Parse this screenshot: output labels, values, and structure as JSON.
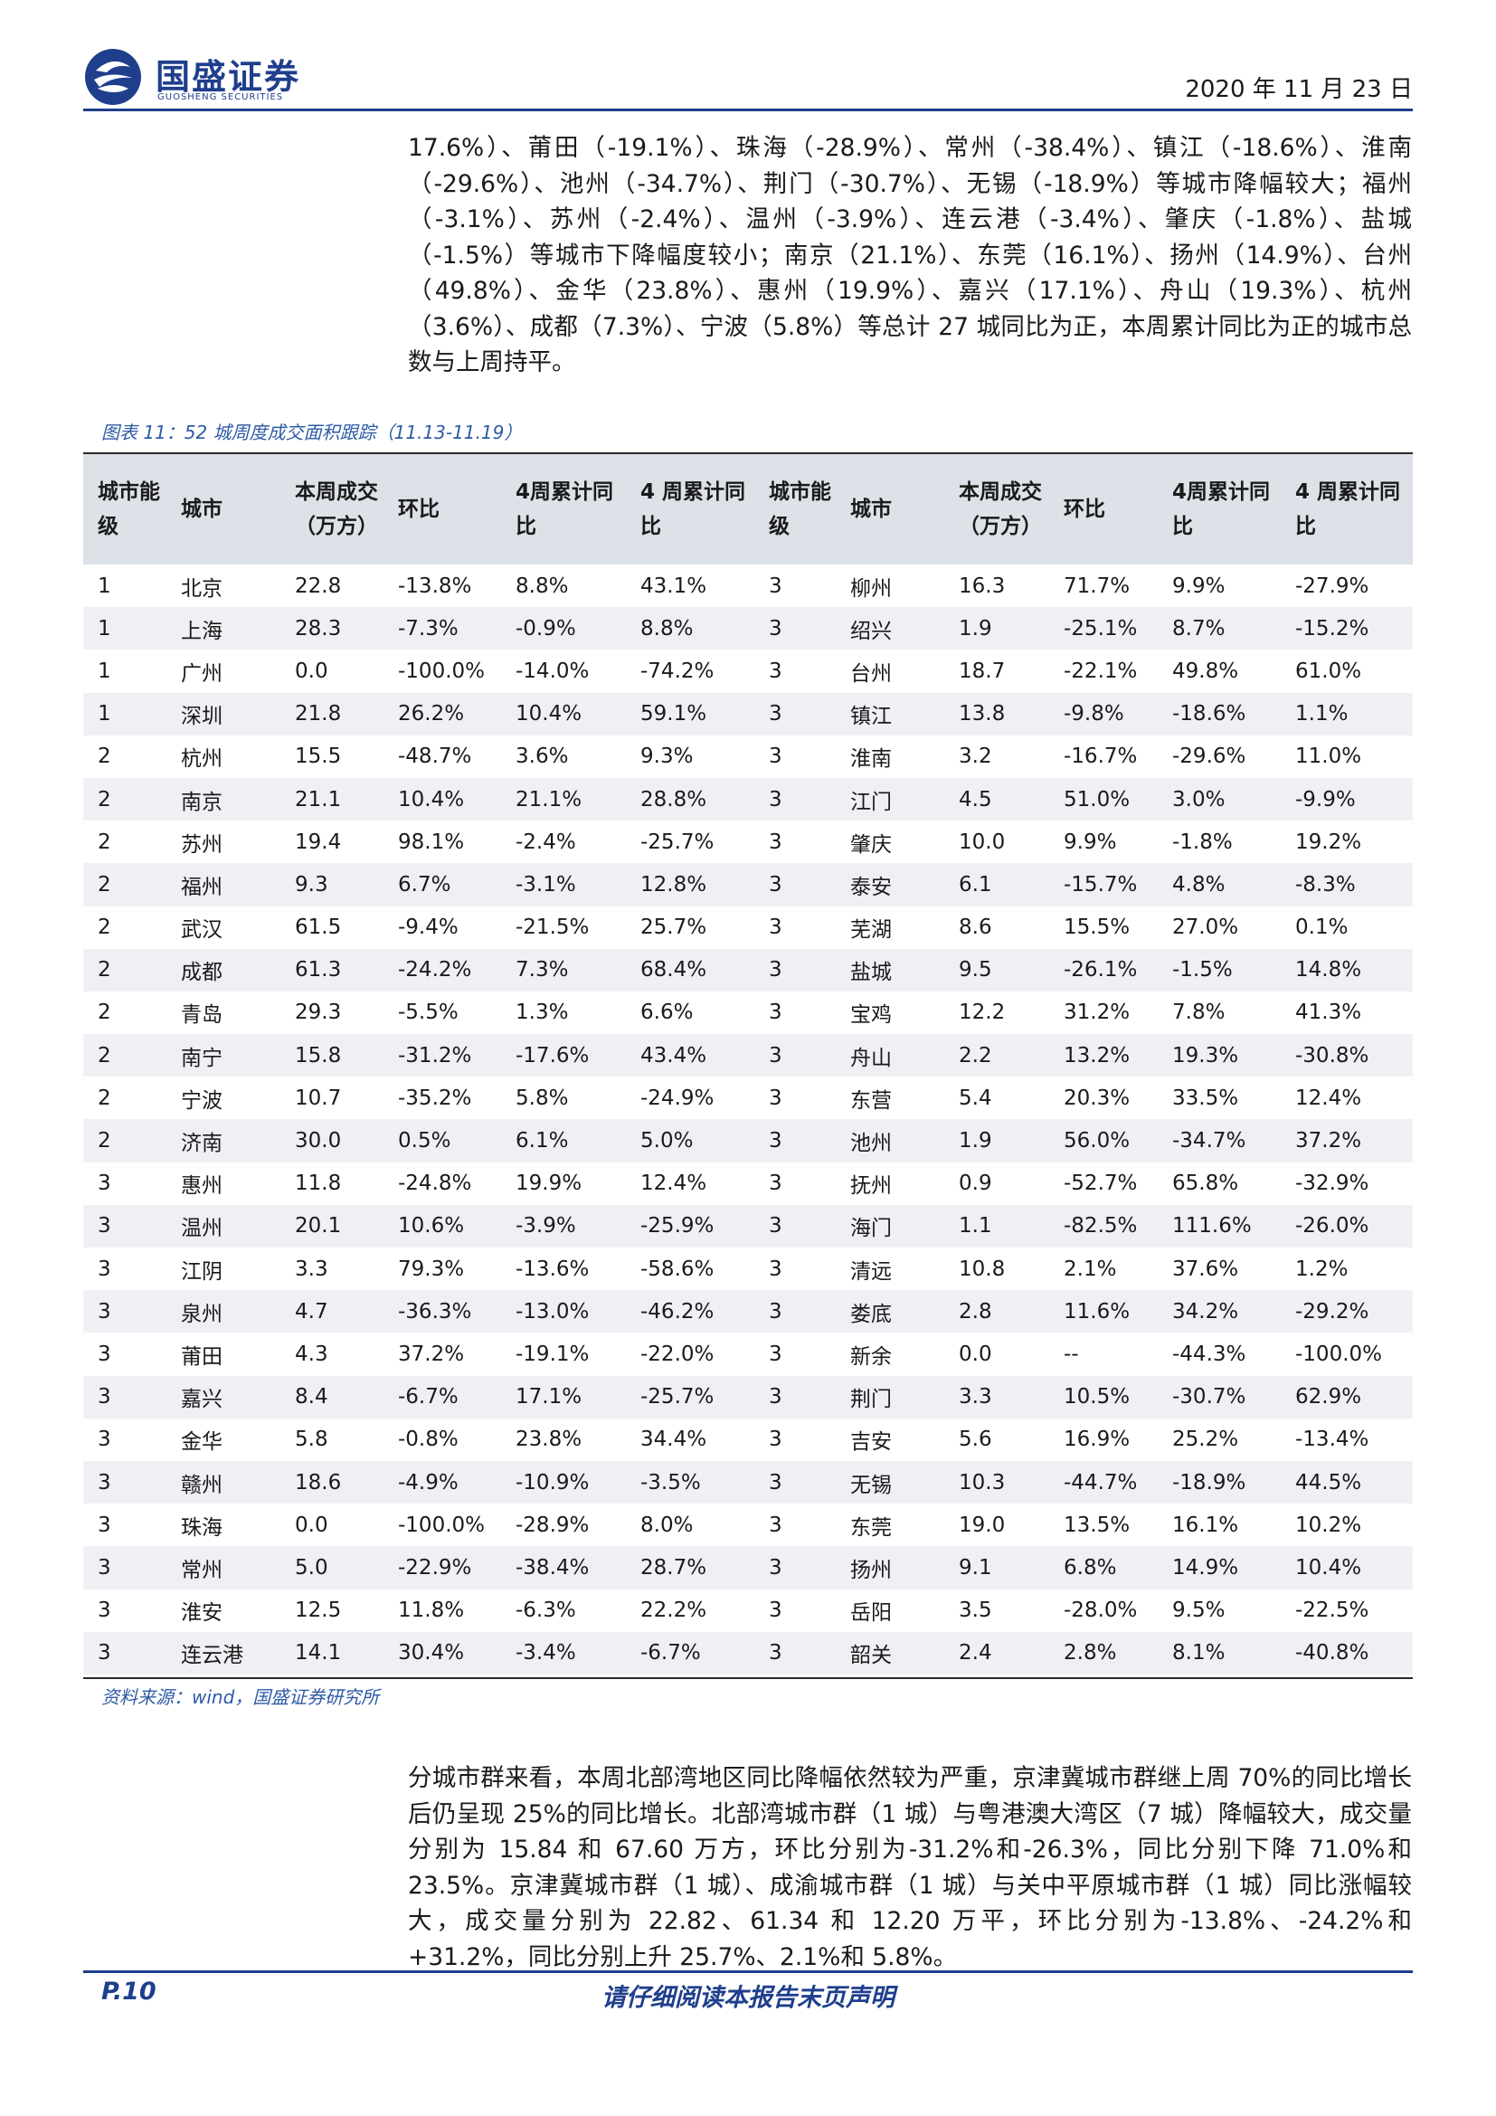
{
  "header": {
    "logo_cn": "国盛证券",
    "logo_en": "GUOSHENG SECURITIES",
    "date": "2020 年 11 月 23 日"
  },
  "intro_paragraph": "17.6%）、莆田（-19.1%）、珠海（-28.9%）、常州（-38.4%）、镇江（-18.6%）、淮南（-29.6%）、池州（-34.7%）、荆门（-30.7%）、无锡（-18.9%）等城市降幅较大；福州（-3.1%）、苏州（-2.4%）、温州（-3.9%）、连云港（-3.4%）、肇庆（-1.8%）、盐城（-1.5%）等城市下降幅度较小；南京（21.1%）、东莞（16.1%）、扬州（14.9%）、台州（49.8%）、金华（23.8%）、惠州（19.9%）、嘉兴（17.1%）、舟山（19.3%）、杭州（3.6%）、成都（7.3%）、宁波（5.8%）等总计 27 城同比为正，本周累计同比为正的城市总数与上周持平。",
  "figure": {
    "caption": "图表 11：52 城周度成交面积跟踪（11.13-11.19）",
    "source": "资料来源：wind，国盛证券研究所"
  },
  "table": {
    "headers": [
      "城市能级",
      "城市",
      "本周成交（万方）",
      "环比",
      "4周累计同比",
      "4 周累计同比",
      "城市能级",
      "城市",
      "本周成交（万方）",
      "环比",
      "4周累计同比",
      "4 周累计同比"
    ],
    "rows": [
      [
        "1",
        "北京",
        "22.8",
        "-13.8%",
        "8.8%",
        "43.1%",
        "3",
        "柳州",
        "16.3",
        "71.7%",
        "9.9%",
        "-27.9%"
      ],
      [
        "1",
        "上海",
        "28.3",
        "-7.3%",
        "-0.9%",
        "8.8%",
        "3",
        "绍兴",
        "1.9",
        "-25.1%",
        "8.7%",
        "-15.2%"
      ],
      [
        "1",
        "广州",
        "0.0",
        "-100.0%",
        "-14.0%",
        "-74.2%",
        "3",
        "台州",
        "18.7",
        "-22.1%",
        "49.8%",
        "61.0%"
      ],
      [
        "1",
        "深圳",
        "21.8",
        "26.2%",
        "10.4%",
        "59.1%",
        "3",
        "镇江",
        "13.8",
        "-9.8%",
        "-18.6%",
        "1.1%"
      ],
      [
        "2",
        "杭州",
        "15.5",
        "-48.7%",
        "3.6%",
        "9.3%",
        "3",
        "淮南",
        "3.2",
        "-16.7%",
        "-29.6%",
        "11.0%"
      ],
      [
        "2",
        "南京",
        "21.1",
        "10.4%",
        "21.1%",
        "28.8%",
        "3",
        "江门",
        "4.5",
        "51.0%",
        "3.0%",
        "-9.9%"
      ],
      [
        "2",
        "苏州",
        "19.4",
        "98.1%",
        "-2.4%",
        "-25.7%",
        "3",
        "肇庆",
        "10.0",
        "9.9%",
        "-1.8%",
        "19.2%"
      ],
      [
        "2",
        "福州",
        "9.3",
        "6.7%",
        "-3.1%",
        "12.8%",
        "3",
        "泰安",
        "6.1",
        "-15.7%",
        "4.8%",
        "-8.3%"
      ],
      [
        "2",
        "武汉",
        "61.5",
        "-9.4%",
        "-21.5%",
        "25.7%",
        "3",
        "芜湖",
        "8.6",
        "15.5%",
        "27.0%",
        "0.1%"
      ],
      [
        "2",
        "成都",
        "61.3",
        "-24.2%",
        "7.3%",
        "68.4%",
        "3",
        "盐城",
        "9.5",
        "-26.1%",
        "-1.5%",
        "14.8%"
      ],
      [
        "2",
        "青岛",
        "29.3",
        "-5.5%",
        "1.3%",
        "6.6%",
        "3",
        "宝鸡",
        "12.2",
        "31.2%",
        "7.8%",
        "41.3%"
      ],
      [
        "2",
        "南宁",
        "15.8",
        "-31.2%",
        "-17.6%",
        "43.4%",
        "3",
        "舟山",
        "2.2",
        "13.2%",
        "19.3%",
        "-30.8%"
      ],
      [
        "2",
        "宁波",
        "10.7",
        "-35.2%",
        "5.8%",
        "-24.9%",
        "3",
        "东营",
        "5.4",
        "20.3%",
        "33.5%",
        "12.4%"
      ],
      [
        "2",
        "济南",
        "30.0",
        "0.5%",
        "6.1%",
        "5.0%",
        "3",
        "池州",
        "1.9",
        "56.0%",
        "-34.7%",
        "37.2%"
      ],
      [
        "3",
        "惠州",
        "11.8",
        "-24.8%",
        "19.9%",
        "12.4%",
        "3",
        "抚州",
        "0.9",
        "-52.7%",
        "65.8%",
        "-32.9%"
      ],
      [
        "3",
        "温州",
        "20.1",
        "10.6%",
        "-3.9%",
        "-25.9%",
        "3",
        "海门",
        "1.1",
        "-82.5%",
        "111.6%",
        "-26.0%"
      ],
      [
        "3",
        "江阴",
        "3.3",
        "79.3%",
        "-13.6%",
        "-58.6%",
        "3",
        "清远",
        "10.8",
        "2.1%",
        "37.6%",
        "1.2%"
      ],
      [
        "3",
        "泉州",
        "4.7",
        "-36.3%",
        "-13.0%",
        "-46.2%",
        "3",
        "娄底",
        "2.8",
        "11.6%",
        "34.2%",
        "-29.2%"
      ],
      [
        "3",
        "莆田",
        "4.3",
        "37.2%",
        "-19.1%",
        "-22.0%",
        "3",
        "新余",
        "0.0",
        "--",
        "-44.3%",
        "-100.0%"
      ],
      [
        "3",
        "嘉兴",
        "8.4",
        "-6.7%",
        "17.1%",
        "-25.7%",
        "3",
        "荆门",
        "3.3",
        "10.5%",
        "-30.7%",
        "62.9%"
      ],
      [
        "3",
        "金华",
        "5.8",
        "-0.8%",
        "23.8%",
        "34.4%",
        "3",
        "吉安",
        "5.6",
        "16.9%",
        "25.2%",
        "-13.4%"
      ],
      [
        "3",
        "赣州",
        "18.6",
        "-4.9%",
        "-10.9%",
        "-3.5%",
        "3",
        "无锡",
        "10.3",
        "-44.7%",
        "-18.9%",
        "44.5%"
      ],
      [
        "3",
        "珠海",
        "0.0",
        "-100.0%",
        "-28.9%",
        "8.0%",
        "3",
        "东莞",
        "19.0",
        "13.5%",
        "16.1%",
        "10.2%"
      ],
      [
        "3",
        "常州",
        "5.0",
        "-22.9%",
        "-38.4%",
        "28.7%",
        "3",
        "扬州",
        "9.1",
        "6.8%",
        "14.9%",
        "10.4%"
      ],
      [
        "3",
        "淮安",
        "12.5",
        "11.8%",
        "-6.3%",
        "22.2%",
        "3",
        "岳阳",
        "3.5",
        "-28.0%",
        "9.5%",
        "-22.5%"
      ],
      [
        "3",
        "连云港",
        "14.1",
        "30.4%",
        "-3.4%",
        "-6.7%",
        "3",
        "韶关",
        "2.4",
        "2.8%",
        "8.1%",
        "-40.8%"
      ]
    ]
  },
  "summary_paragraph": "分城市群来看，本周北部湾地区同比降幅依然较为严重，京津冀城市群继上周 70%的同比增长后仍呈现 25%的同比增长。北部湾城市群（1 城）与粤港澳大湾区（7 城）降幅较大，成交量分别为 15.84 和 67.60 万方，环比分别为-31.2%和-26.3%，同比分别下降 71.0%和 23.5%。京津冀城市群（1 城）、成渝城市群（1 城）与关中平原城市群（1 城）同比涨幅较大，成交量分别为 22.82、61.34 和 12.20 万平，环比分别为-13.8%、-24.2%和+31.2%，同比分别上升 25.7%、2.1%和 5.8%。",
  "footer": {
    "page": "P.10",
    "note": "请仔细阅读本报告末页声明"
  },
  "colors": {
    "brand": "#1f3e8c",
    "caption": "#2e5aa6",
    "header_fill": "#dde1e8",
    "stripe_fill": "#eef0f4"
  }
}
